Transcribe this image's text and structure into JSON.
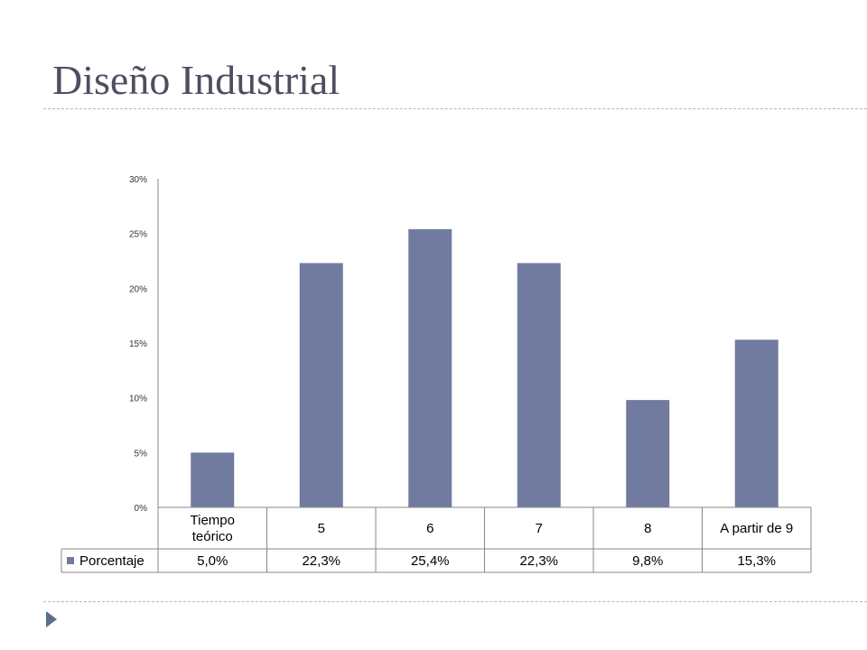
{
  "slide": {
    "title": "Diseño Industrial",
    "bullet_icon": "triangle-bullet-icon"
  },
  "colors": {
    "bar": "#717b9f",
    "rule": "#a9b9c9",
    "title": "#4d4f60",
    "bullet": "#5a6e8f"
  },
  "chart_data": {
    "type": "bar",
    "categories": [
      "Tiempo teórico",
      "5",
      "6",
      "7",
      "8",
      "A partir de 9"
    ],
    "series": [
      {
        "name": "Porcentaje",
        "values": [
          5.0,
          22.3,
          25.4,
          22.3,
          9.8,
          15.3
        ]
      }
    ],
    "table_values": [
      "5,0%",
      "22,3%",
      "25,4%",
      "22,3%",
      "9,8%",
      "15,3%"
    ],
    "y_ticks": [
      "0%",
      "5%",
      "10%",
      "15%",
      "20%",
      "25%",
      "30%"
    ],
    "ylim": [
      0,
      30
    ],
    "grid": false,
    "data_table": true
  }
}
